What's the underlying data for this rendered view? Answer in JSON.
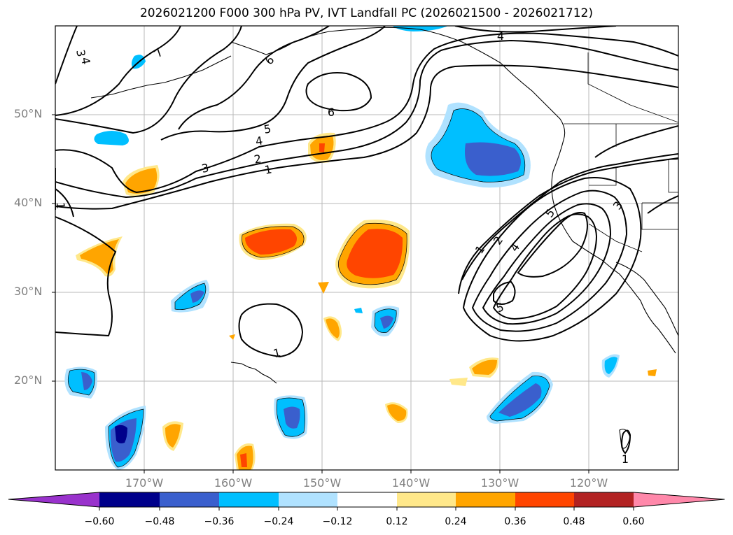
{
  "title": "2026021200 F000 300 hPa PV, IVT Landfall PC (2026021500 - 2026021712)",
  "map": {
    "projection": "PlateCarree",
    "lon_range": [
      -180,
      -110
    ],
    "lat_range": [
      10,
      60
    ],
    "lat_labels": [
      "50°N",
      "40°N",
      "30°N",
      "20°N"
    ],
    "lon_labels": [
      "170°W",
      "160°W",
      "150°W",
      "140°W",
      "130°W",
      "120°W"
    ],
    "gridlines": true
  },
  "contours": {
    "variable": "IVT Landfall PC",
    "color": "#000000",
    "labels": [
      "7",
      "3",
      "4",
      "6",
      "6",
      "4",
      "5",
      "4",
      "3",
      "2",
      "1",
      "1",
      "1",
      "2",
      "4",
      "5",
      "5",
      "3",
      "1",
      "1"
    ]
  },
  "colorbar": {
    "variable": "300 hPa PV anomaly",
    "tick_labels": [
      "−0.60",
      "−0.48",
      "−0.36",
      "−0.24",
      "−0.12",
      "0.12",
      "0.24",
      "0.36",
      "0.48",
      "0.60"
    ],
    "colors": {
      "under": "#9932cc",
      "bins": [
        "#00008b",
        "#3a5fcd",
        "#00bfff",
        "#b0e2ff",
        "#ffffff",
        "#ffe88a",
        "#ffa500",
        "#ff4500",
        "#b22222"
      ],
      "over": "#ff88aa"
    }
  }
}
